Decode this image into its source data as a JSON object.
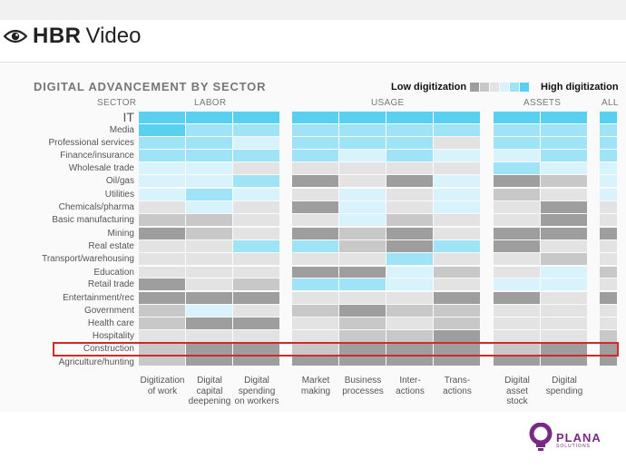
{
  "brand": {
    "hbr": "HBR",
    "video": "Video",
    "icon": "eye-icon"
  },
  "chart_data": {
    "type": "heatmap",
    "title": "DIGITAL ADVANCEMENT BY SECTOR",
    "legend": {
      "low_label": "Low digitization",
      "high_label": "High digitization",
      "scale_colors": [
        "#9e9e9e",
        "#c8c8c8",
        "#e3e3e3",
        "#d8f3fc",
        "#9fe3f7",
        "#59d0f0"
      ]
    },
    "sector_header": "SECTOR",
    "groups": [
      {
        "name": "LABOR",
        "columns": [
          "Digitization of work",
          "Digital capital deepening",
          "Digital spending on workers"
        ]
      },
      {
        "name": "USAGE",
        "columns": [
          "Market making",
          "Business processes",
          "Inter-actions",
          "Trans-actions"
        ]
      },
      {
        "name": "ASSETS",
        "columns": [
          "Digital asset stock",
          "Digital spending"
        ]
      },
      {
        "name": "ALL",
        "columns": [
          ""
        ]
      }
    ],
    "x_labels": [
      [
        "Digitization",
        "of work"
      ],
      [
        "Digital",
        "capital",
        "deepening"
      ],
      [
        "Digital",
        "spending",
        "on workers"
      ],
      [
        "Market",
        "making"
      ],
      [
        "Business",
        "processes"
      ],
      [
        "Inter-",
        "actions"
      ],
      [
        "Trans-",
        "actions"
      ],
      [
        "Digital",
        "asset",
        "stock"
      ],
      [
        "Digital",
        "spending"
      ]
    ],
    "sectors": [
      "IT",
      "Media",
      "Professional services",
      "Finance/insurance",
      "Wholesale trade",
      "Oil/gas",
      "Utilities",
      "Chemicals/pharma",
      "Basic manufacturing",
      "Mining",
      "Real estate",
      "Transport/warehousing",
      "Education",
      "Retail trade",
      "Entertainment/rec",
      "Government",
      "Health care",
      "Hospitality",
      "Construction",
      "Agriculture/hunting"
    ],
    "levels_note": "0=lowest digitization, 5=highest digitization",
    "values": [
      [
        5,
        5,
        5,
        5,
        5,
        5,
        5,
        5,
        5,
        5
      ],
      [
        5,
        4,
        4,
        4,
        4,
        4,
        4,
        4,
        4,
        4
      ],
      [
        4,
        4,
        3,
        4,
        4,
        4,
        2,
        4,
        4,
        4
      ],
      [
        4,
        4,
        4,
        4,
        3,
        4,
        3,
        3,
        4,
        4
      ],
      [
        3,
        3,
        2,
        2,
        2,
        2,
        2,
        4,
        3,
        3
      ],
      [
        3,
        3,
        4,
        0,
        2,
        0,
        3,
        0,
        1,
        3
      ],
      [
        3,
        4,
        3,
        2,
        3,
        2,
        3,
        1,
        2,
        3
      ],
      [
        2,
        3,
        2,
        0,
        3,
        2,
        3,
        2,
        0,
        2
      ],
      [
        1,
        1,
        2,
        2,
        3,
        1,
        2,
        2,
        0,
        2
      ],
      [
        0,
        1,
        2,
        0,
        1,
        0,
        2,
        0,
        0,
        0
      ],
      [
        2,
        2,
        4,
        4,
        1,
        0,
        4,
        0,
        2,
        2
      ],
      [
        2,
        2,
        2,
        2,
        2,
        4,
        2,
        2,
        1,
        2
      ],
      [
        2,
        2,
        2,
        0,
        0,
        3,
        1,
        2,
        3,
        1
      ],
      [
        0,
        2,
        1,
        4,
        4,
        3,
        2,
        3,
        3,
        2
      ],
      [
        0,
        0,
        0,
        2,
        2,
        2,
        0,
        0,
        2,
        0
      ],
      [
        1,
        3,
        2,
        1,
        0,
        1,
        1,
        2,
        2,
        2
      ],
      [
        1,
        0,
        0,
        2,
        1,
        2,
        1,
        2,
        2,
        2
      ],
      [
        2,
        2,
        2,
        2,
        1,
        1,
        0,
        2,
        2,
        1
      ],
      [
        1,
        0,
        0,
        1,
        0,
        0,
        0,
        1,
        0,
        0
      ],
      [
        1,
        0,
        0,
        0,
        0,
        0,
        0,
        0,
        0,
        0
      ]
    ],
    "highlighted_sector": "Construction"
  },
  "logo": {
    "name": "PLANA",
    "sub": "SOLUTIONS",
    "icon": "bulb-icon"
  }
}
